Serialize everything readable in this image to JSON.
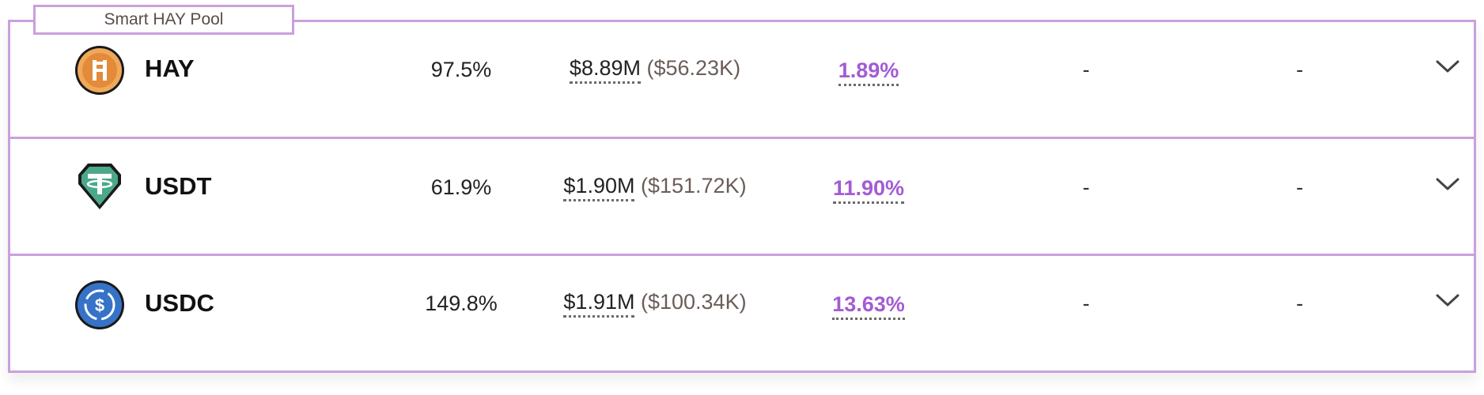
{
  "pool": {
    "title": "Smart HAY Pool",
    "accent_color": "#c9a0dc",
    "apy_color": "#a35bd3"
  },
  "rows": [
    {
      "asset": "HAY",
      "icon": "hay-coin-icon",
      "utilization": "97.5%",
      "liquidity_main": "$8.89M",
      "liquidity_sub": "($56.23K)",
      "apy": "1.89%",
      "col_a": "-",
      "col_b": "-"
    },
    {
      "asset": "USDT",
      "icon": "usdt-coin-icon",
      "utilization": "61.9%",
      "liquidity_main": "$1.90M",
      "liquidity_sub": "($151.72K)",
      "apy": "11.90%",
      "col_a": "-",
      "col_b": "-"
    },
    {
      "asset": "USDC",
      "icon": "usdc-coin-icon",
      "utilization": "149.8%",
      "liquidity_main": "$1.91M",
      "liquidity_sub": "($100.34K)",
      "apy": "13.63%",
      "col_a": "-",
      "col_b": "-"
    }
  ]
}
